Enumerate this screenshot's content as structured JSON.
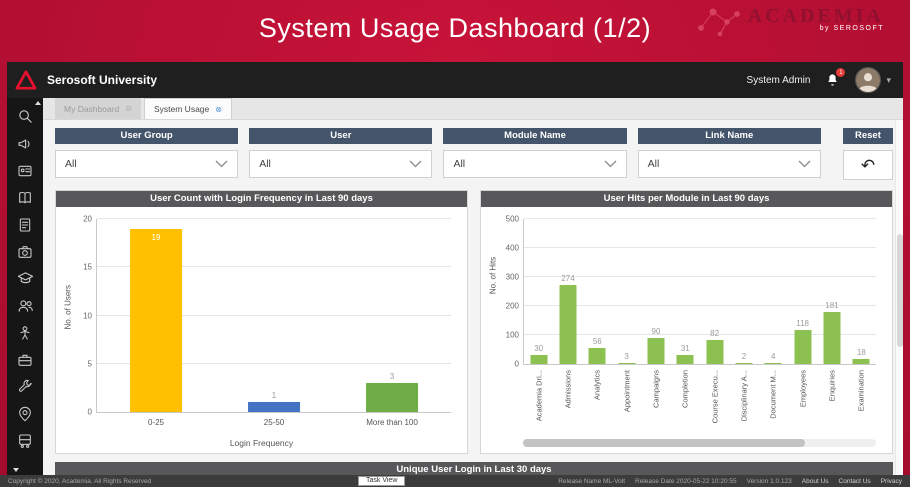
{
  "banner": {
    "title": "System Usage Dashboard (1/2)",
    "brand_name": "ACADEMIA",
    "brand_sub": "by SEROSOFT"
  },
  "topbar": {
    "university": "Serosoft University",
    "role": "System Admin",
    "notification_badge": "1"
  },
  "icons": {
    "tab_inactive_glyph": "⊙",
    "tab_active_glyph": "⊗",
    "reset_glyph": "↶",
    "caret_glyph": "▾"
  },
  "sidebar": {
    "icons": [
      "search-icon",
      "megaphone-icon",
      "id-card-icon",
      "book-icon",
      "document-icon",
      "camera-icon",
      "graduation-cap-icon",
      "users-icon",
      "student-icon",
      "briefcase-icon",
      "wrench-icon",
      "location-person-icon",
      "bus-icon"
    ]
  },
  "tabs": [
    {
      "label": "My Dashboard",
      "active": false
    },
    {
      "label": "System Usage",
      "active": true
    }
  ],
  "filters": {
    "groups": [
      {
        "label": "User Group",
        "value": "All"
      },
      {
        "label": "User",
        "value": "All"
      },
      {
        "label": "Module Name",
        "value": "All"
      },
      {
        "label": "Link Name",
        "value": "All"
      }
    ],
    "reset_label": "Reset"
  },
  "chart_data": [
    {
      "type": "bar",
      "title": "User Count with Login Frequency in Last 90 days",
      "categories": [
        "0-25",
        "25-50",
        "More than 100"
      ],
      "values": [
        19,
        1,
        3
      ],
      "colors": [
        "#FFC000",
        "#4472C4",
        "#70AD47"
      ],
      "xlabel": "Login Frequency",
      "ylabel": "No. of Users",
      "ylim": [
        0,
        20
      ],
      "yticks": [
        0,
        5,
        10,
        15,
        20
      ],
      "bar_width": "44%",
      "inside_threshold": 50,
      "rotate_labels": false,
      "grid": true,
      "legend": false
    },
    {
      "type": "bar",
      "title": "User Hits per Module in Last 90 days",
      "categories": [
        "Academia Dri...",
        "Admissions",
        "Analytics",
        "Appointment",
        "Campaigns",
        "Completion",
        "Course Execu...",
        "Disciplinary A...",
        "Document M...",
        "Employees",
        "Enquiries",
        "Examination"
      ],
      "values": [
        30,
        274,
        56,
        3,
        90,
        31,
        82,
        2,
        4,
        118,
        181,
        18
      ],
      "color": "#8CC152",
      "xlabel": "",
      "ylabel": "No. of Hits",
      "ylim": [
        0,
        500
      ],
      "yticks": [
        0,
        100,
        200,
        300,
        400,
        500
      ],
      "bar_width": "58%",
      "rotate_labels": true,
      "grid": true,
      "legend": false
    }
  ],
  "bottom_panel": {
    "title": "Unique User Login in Last 30 days"
  },
  "footer": {
    "copyright": "Copyright © 2020, Academia. All Rights Reserved",
    "task_view": "Task View",
    "release_name": "Release Name ML-Volt",
    "release_date": "Release Date 2020-05-22 10:20:55",
    "version": "Version 1.0.123",
    "links": [
      "About Us",
      "Contact Us",
      "Privacy"
    ]
  }
}
